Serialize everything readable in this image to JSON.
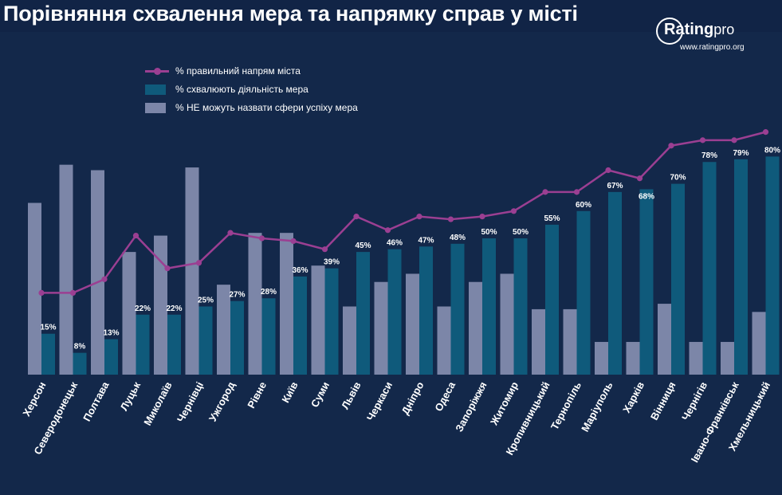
{
  "title": "Порівняння схвалення мера та напрямку справ у місті",
  "logo": {
    "brand": "Rating",
    "brand_suffix": "pro",
    "url": "www.ratingpro.org"
  },
  "legend": [
    {
      "key": "direction",
      "label": "% правильний напрям міста",
      "color": "#9b3f92"
    },
    {
      "key": "approve",
      "label": "% схвалюють діяльність мера",
      "color": "#0f5a7b"
    },
    {
      "key": "cannot_name",
      "label": "% НЕ можуть назвати сфери успіху мера",
      "color": "#7c86a8"
    }
  ],
  "chart_data": {
    "type": "bar",
    "title": "Порівняння схвалення мера та напрямку справ у місті",
    "xlabel": "",
    "ylabel": "",
    "ylim": [
      0,
      85
    ],
    "grid": false,
    "legend_position": "top-left",
    "categories": [
      "Херсон",
      "Северодонецьк",
      "Полтава",
      "Луцьк",
      "Миколаїв",
      "Чернівці",
      "Ужгород",
      "Рівне",
      "Київ",
      "Суми",
      "Львів",
      "Черкаси",
      "Дніпро",
      "Одеса",
      "Запоріжжя",
      "Житомир",
      "Кропивницький",
      "Тернопіль",
      "Маріуполь",
      "Харків",
      "Вінниця",
      "Чернігів",
      "Івано-Франківськ",
      "Хмельницький"
    ],
    "series": [
      {
        "name": "% НЕ можуть назвати сфери успіху мера",
        "type": "bar",
        "color": "#7c86a8",
        "values": [
          63,
          77,
          75,
          45,
          51,
          76,
          33,
          52,
          52,
          40,
          25,
          34,
          37,
          25,
          34,
          37,
          24,
          24,
          12,
          12,
          26,
          12,
          12,
          23
        ]
      },
      {
        "name": "% схвалюють діяльність мера",
        "type": "bar",
        "color": "#0f5a7b",
        "values": [
          15,
          8,
          13,
          22,
          22,
          25,
          27,
          28,
          36,
          39,
          45,
          46,
          47,
          48,
          50,
          50,
          55,
          60,
          67,
          68,
          70,
          78,
          79,
          80
        ],
        "labels": [
          "15%",
          "8%",
          "13%",
          "22%",
          "22%",
          "25%",
          "27%",
          "28%",
          "36%",
          "39%",
          "45%",
          "46%",
          "47%",
          "48%",
          "50%",
          "50%",
          "55%",
          "60%",
          "67%",
          "68%",
          "70%",
          "78%",
          "79%",
          "80%"
        ]
      },
      {
        "name": "% правильний напрям міста",
        "type": "line",
        "color": "#9b3f92",
        "values": [
          30,
          30,
          35,
          51,
          39,
          41,
          52,
          50,
          49,
          46,
          58,
          53,
          58,
          57,
          58,
          60,
          67,
          67,
          75,
          72,
          84,
          86,
          86,
          89
        ]
      }
    ]
  }
}
